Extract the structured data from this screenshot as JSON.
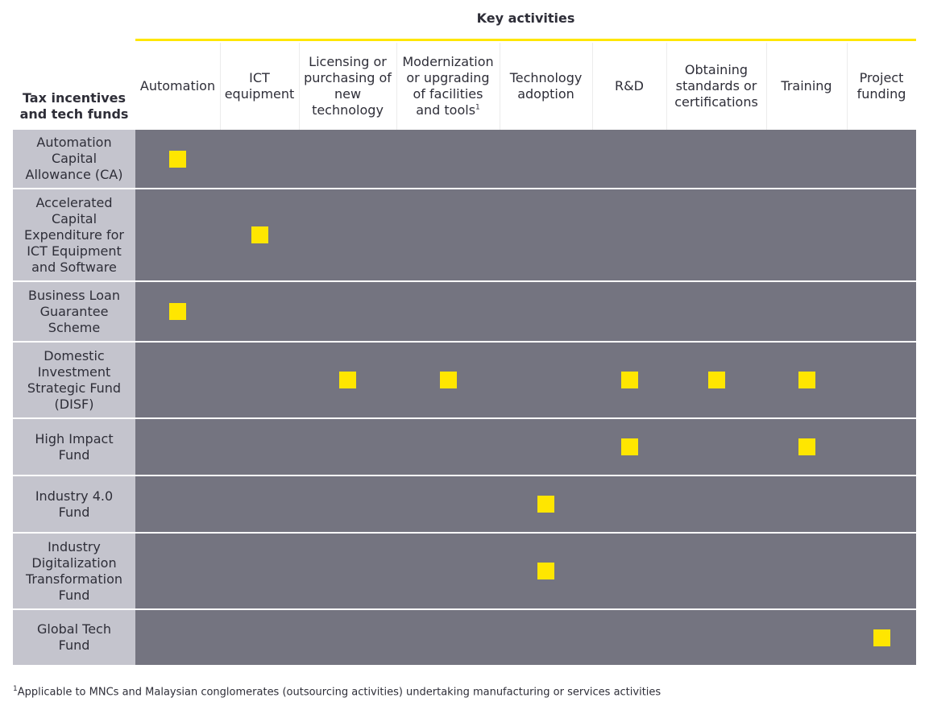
{
  "header": {
    "key_activities_title": "Key activities",
    "row_header": "Tax incentives\nand tech funds"
  },
  "columns": [
    {
      "label": "Automation",
      "sup": ""
    },
    {
      "label": "ICT\nequipment",
      "sup": ""
    },
    {
      "label": "Licensing or\npurchasing of\nnew\ntechnology",
      "sup": ""
    },
    {
      "label": "Modernization\nor upgrading\nof facilities\nand tools",
      "sup": "1"
    },
    {
      "label": "Technology\nadoption",
      "sup": ""
    },
    {
      "label": "R&D",
      "sup": ""
    },
    {
      "label": "Obtaining\nstandards or\ncertifications",
      "sup": ""
    },
    {
      "label": "Training",
      "sup": ""
    },
    {
      "label": "Project\nfunding",
      "sup": ""
    }
  ],
  "rows": [
    {
      "label": "Automation\nCapital\nAllowance (CA)",
      "marks": [
        0
      ]
    },
    {
      "label": "Accelerated\nCapital\nExpenditure for\nICT Equipment\nand Software",
      "marks": [
        1
      ]
    },
    {
      "label": "Business Loan\nGuarantee\nScheme",
      "marks": [
        0
      ]
    },
    {
      "label": "Domestic\nInvestment\nStrategic Fund\n(DISF)",
      "marks": [
        2,
        3,
        5,
        6,
        7
      ]
    },
    {
      "label": "High Impact\nFund",
      "marks": [
        5,
        7
      ]
    },
    {
      "label": "Industry 4.0\nFund",
      "marks": [
        4
      ]
    },
    {
      "label": "Industry\nDigitalization\nTransformation\nFund",
      "marks": [
        4
      ]
    },
    {
      "label": "Global Tech\nFund",
      "marks": [
        8
      ]
    }
  ],
  "footnote": {
    "marker": "1",
    "text": "Applicable to MNCs and Malaysian conglomerates (outsourcing activities) undertaking manufacturing or services activities"
  },
  "colors": {
    "accent_yellow": "#ffe600",
    "row_label_bg": "#c4c4cd",
    "row_body_bg": "#747480",
    "text": "#2e2e38"
  }
}
